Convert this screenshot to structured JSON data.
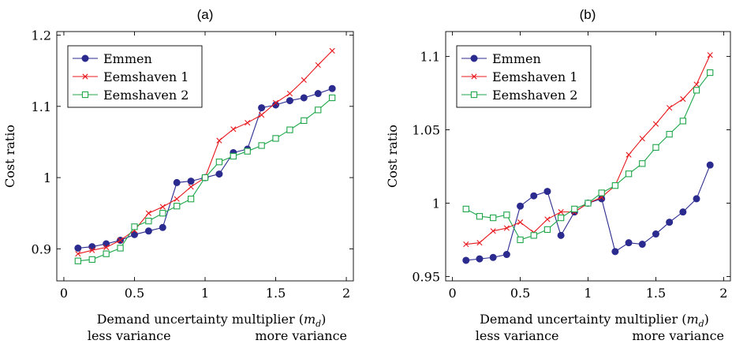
{
  "chart_data": [
    {
      "type": "line",
      "panel_label": "(a)",
      "xlabel": "Demand uncertainty multiplier (m_d)",
      "xlabel_text": "Demand uncertainty multiplier (",
      "xlabel_math": "m",
      "xlabel_sub": "d",
      "xlabel_close": ")",
      "bottom_left": "less variance",
      "bottom_right": "more variance",
      "ylabel": "Cost ratio",
      "xlim": [
        -0.05,
        2.05
      ],
      "ylim": [
        0.855,
        1.205
      ],
      "xticks": [
        "0",
        "0.5",
        "1",
        "1.5",
        "2"
      ],
      "xtick_values": [
        0,
        0.5,
        1,
        1.5,
        2
      ],
      "yticks": [
        "0.9",
        "1",
        "1.1",
        "1.2"
      ],
      "ytick_values": [
        0.9,
        1.0,
        1.1,
        1.2
      ],
      "legend_position": "top-left",
      "x": [
        0.1,
        0.2,
        0.3,
        0.4,
        0.5,
        0.6,
        0.7,
        0.8,
        0.9,
        1.0,
        1.1,
        1.2,
        1.3,
        1.4,
        1.5,
        1.6,
        1.7,
        1.8,
        1.9
      ],
      "series": [
        {
          "name": "Emmen",
          "color": "#2b2b8f",
          "marker": "circle",
          "values": [
            0.901,
            0.903,
            0.907,
            0.912,
            0.92,
            0.925,
            0.93,
            0.993,
            0.995,
            1.0,
            1.005,
            1.035,
            1.04,
            1.098,
            1.102,
            1.108,
            1.112,
            1.118,
            1.125
          ]
        },
        {
          "name": "Eemshaven 1",
          "color": "#e8191e",
          "marker": "cross",
          "values": [
            0.893,
            0.898,
            0.902,
            0.912,
            0.926,
            0.95,
            0.959,
            0.97,
            0.987,
            1.0,
            1.052,
            1.068,
            1.077,
            1.088,
            1.105,
            1.118,
            1.137,
            1.158,
            1.178
          ]
        },
        {
          "name": "Eemshaven 2",
          "color": "#1fa64a",
          "marker": "square",
          "values": [
            0.883,
            0.885,
            0.893,
            0.901,
            0.931,
            0.939,
            0.95,
            0.96,
            0.97,
            1.0,
            1.022,
            1.03,
            1.037,
            1.045,
            1.055,
            1.067,
            1.08,
            1.095,
            1.112
          ]
        }
      ]
    },
    {
      "type": "line",
      "panel_label": "(b)",
      "xlabel": "Demand uncertainty multiplier (m_d)",
      "xlabel_text": "Demand uncertainty multiplier (",
      "xlabel_math": "m",
      "xlabel_sub": "d",
      "xlabel_close": ")",
      "bottom_left": "less variance",
      "bottom_right": "more variance",
      "ylabel": "Cost ratio",
      "xlim": [
        -0.05,
        2.05
      ],
      "ylim": [
        0.947,
        1.117
      ],
      "xticks": [
        "0",
        "0.5",
        "1",
        "1.5",
        "2"
      ],
      "xtick_values": [
        0,
        0.5,
        1,
        1.5,
        2
      ],
      "yticks": [
        "0.95",
        "1",
        "1.05",
        "1.1"
      ],
      "ytick_values": [
        0.95,
        1.0,
        1.05,
        1.1
      ],
      "legend_position": "top-left",
      "x": [
        0.1,
        0.2,
        0.3,
        0.4,
        0.5,
        0.6,
        0.7,
        0.8,
        0.9,
        1.0,
        1.1,
        1.2,
        1.3,
        1.4,
        1.5,
        1.6,
        1.7,
        1.8,
        1.9
      ],
      "series": [
        {
          "name": "Emmen",
          "color": "#2b2b8f",
          "marker": "circle",
          "values": [
            0.961,
            0.962,
            0.963,
            0.965,
            0.998,
            1.005,
            1.008,
            0.978,
            0.994,
            1.0,
            1.003,
            0.967,
            0.973,
            0.972,
            0.979,
            0.987,
            0.994,
            1.003,
            1.026
          ]
        },
        {
          "name": "Eemshaven 1",
          "color": "#e8191e",
          "marker": "cross",
          "values": [
            0.972,
            0.973,
            0.981,
            0.983,
            0.987,
            0.98,
            0.989,
            0.994,
            0.994,
            1.0,
            1.004,
            1.012,
            1.033,
            1.044,
            1.054,
            1.065,
            1.071,
            1.081,
            1.101
          ]
        },
        {
          "name": "Eemshaven 2",
          "color": "#1fa64a",
          "marker": "square",
          "values": [
            0.996,
            0.991,
            0.99,
            0.992,
            0.975,
            0.978,
            0.982,
            0.99,
            0.996,
            1.0,
            1.007,
            1.012,
            1.02,
            1.027,
            1.038,
            1.047,
            1.056,
            1.077,
            1.089
          ]
        }
      ]
    }
  ]
}
